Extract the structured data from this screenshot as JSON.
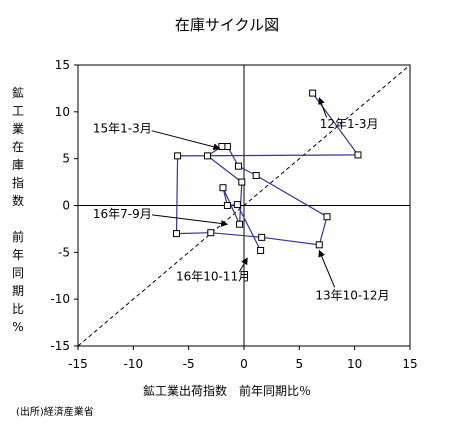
{
  "chart_data": {
    "type": "scatter",
    "title": "在庫サイクル図",
    "xlabel": "鉱工業出荷指数　前年同期比％",
    "ylabel_main": [
      "鉱",
      "工",
      "業",
      "在",
      "庫",
      "指",
      "数"
    ],
    "ylabel_sub": [
      "前",
      "年",
      "同",
      "期",
      "比",
      "%"
    ],
    "xlim": [
      -15,
      15
    ],
    "ylim": [
      -15,
      15
    ],
    "xticks": [
      "-15",
      "-10",
      "-5",
      "0",
      "5",
      "10",
      "15"
    ],
    "yticks": [
      "15",
      "10",
      "5",
      "0",
      "-5",
      "-10",
      "-15"
    ],
    "grid": false,
    "reference_line": "y = x",
    "series": [
      {
        "line_color": "#33339a",
        "points": [
          [
            6.2,
            12.0
          ],
          [
            10.3,
            5.4
          ],
          [
            -6.0,
            5.3
          ],
          [
            -6.1,
            -3.0
          ],
          [
            -3.0,
            -2.9
          ],
          [
            1.6,
            -3.4
          ],
          [
            6.8,
            -4.2
          ],
          [
            7.5,
            -1.2
          ],
          [
            1.1,
            3.2
          ],
          [
            -0.5,
            4.2
          ],
          [
            -1.5,
            6.3
          ],
          [
            -2.0,
            6.3
          ],
          [
            -3.3,
            5.3
          ],
          [
            -0.2,
            2.5
          ],
          [
            -0.4,
            -2.0
          ],
          [
            -1.9,
            1.9
          ],
          [
            -1.5,
            0.0
          ],
          [
            -0.6,
            0.1
          ],
          [
            1.5,
            -4.8
          ]
        ]
      }
    ],
    "annotations": [
      {
        "text": "12年1-3月",
        "x": 9.5,
        "y": 8.7,
        "arrow_to": [
          6.8,
          11.5
        ]
      },
      {
        "text": "15年1-3月",
        "x": -11.0,
        "y": 8.2,
        "arrow_to": [
          -2.2,
          6.1
        ]
      },
      {
        "text": "13年10-12月",
        "x": 9.8,
        "y": -9.6,
        "arrow_to": [
          6.8,
          -4.8
        ]
      },
      {
        "text": "16年7-9月",
        "x": -11.0,
        "y": -0.9,
        "arrow_to": [
          -1.5,
          -2.0
        ]
      },
      {
        "text": "16年10-11月",
        "x": -2.8,
        "y": -7.6,
        "arrow_to": [
          0.3,
          -5.6
        ]
      }
    ]
  },
  "source": "(出所)経済産業省"
}
